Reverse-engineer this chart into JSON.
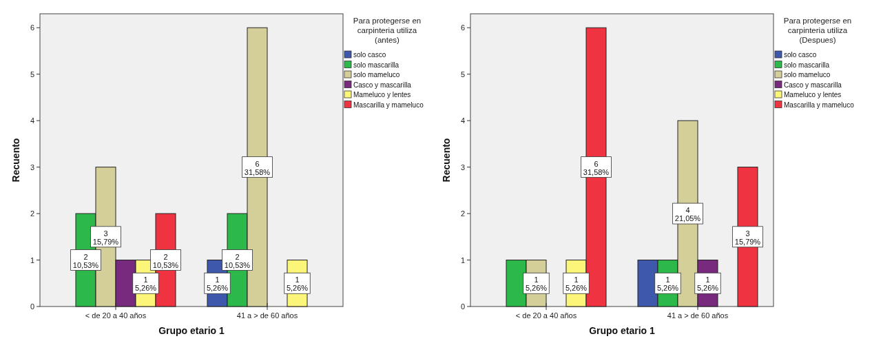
{
  "chart_data": [
    {
      "type": "bar",
      "xlabel": "Grupo etario 1",
      "ylabel": "Recuento",
      "legend_title": "Para protegerse en carpinteria utiliza (antes)",
      "categories": [
        "< de 20 a 40 años",
        "41 a > de 60 años"
      ],
      "ylim": [
        0,
        6.3
      ],
      "yticks": [
        0,
        1,
        2,
        3,
        4,
        5,
        6
      ],
      "legend": "right",
      "series": [
        {
          "name": "solo casco",
          "color": "#3e58ac",
          "values": [
            0,
            1
          ],
          "value_labels": [
            null,
            "1\n5,26%"
          ]
        },
        {
          "name": "solo mascarilla",
          "color": "#2db84a",
          "values": [
            2,
            2
          ],
          "value_labels": [
            "2\n10,53%",
            "2\n10,53%"
          ]
        },
        {
          "name": "solo mameluco",
          "color": "#d4cf98",
          "values": [
            3,
            6
          ],
          "value_labels": [
            "3\n15,79%",
            "6\n31,58%"
          ]
        },
        {
          "name": "Casco y mascarilla",
          "color": "#782a7e",
          "values": [
            1,
            0
          ],
          "value_labels": [
            null,
            null
          ]
        },
        {
          "name": "Mameluco y lentes",
          "color": "#fbf57a",
          "values": [
            1,
            1
          ],
          "value_labels": [
            "1\n5,26%",
            "1\n5,26%"
          ]
        },
        {
          "name": "Mascarilla y mameluco",
          "color": "#ef3340",
          "values": [
            2,
            0
          ],
          "value_labels": [
            "2\n10,53%",
            null
          ]
        }
      ]
    },
    {
      "type": "bar",
      "xlabel": "Grupo etario 1",
      "ylabel": "Recuento",
      "legend_title": "Para protegerse en carpinteria utiliza (Despues)",
      "categories": [
        "< de 20 a 40 años",
        "41 a > de 60 años"
      ],
      "ylim": [
        0,
        6.3
      ],
      "yticks": [
        0,
        1,
        2,
        3,
        4,
        5,
        6
      ],
      "legend": "right",
      "series": [
        {
          "name": "solo casco",
          "color": "#3e58ac",
          "values": [
            0,
            1
          ],
          "value_labels": [
            null,
            null
          ]
        },
        {
          "name": "solo mascarilla",
          "color": "#2db84a",
          "values": [
            1,
            1
          ],
          "value_labels": [
            null,
            "1\n5,26%"
          ]
        },
        {
          "name": "solo mameluco",
          "color": "#d4cf98",
          "values": [
            1,
            4
          ],
          "value_labels": [
            "1\n5,26%",
            "4\n21,05%"
          ]
        },
        {
          "name": "Casco y mascarilla",
          "color": "#782a7e",
          "values": [
            0,
            1
          ],
          "value_labels": [
            null,
            "1\n5,26%"
          ]
        },
        {
          "name": "Mameluco y lentes",
          "color": "#fbf57a",
          "values": [
            1,
            0
          ],
          "value_labels": [
            "1\n5,26%",
            null
          ]
        },
        {
          "name": "Mascarilla y mameluco",
          "color": "#ef3340",
          "values": [
            6,
            3
          ],
          "value_labels": [
            "6\n31,58%",
            "3\n15,79%"
          ]
        }
      ]
    }
  ]
}
